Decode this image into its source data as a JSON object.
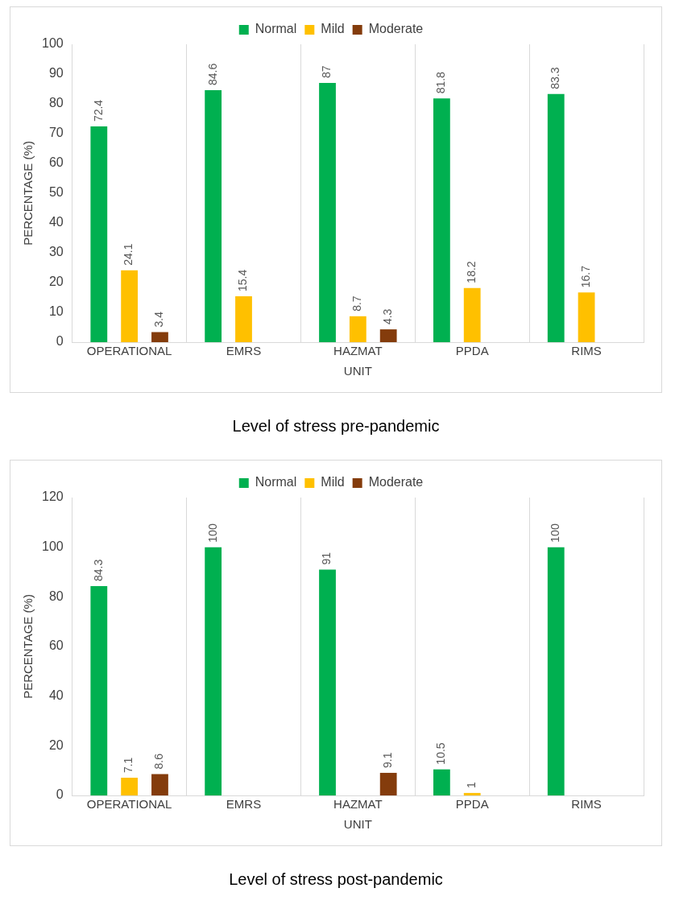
{
  "chart_data": [
    {
      "type": "bar",
      "title": "Level of stress pre-pandemic",
      "xlabel": "UNIT",
      "ylabel": "PERCENTAGE (%)",
      "categories": [
        "OPERATIONAL",
        "EMRS",
        "HAZMAT",
        "PPDA",
        "RIMS"
      ],
      "series": [
        {
          "name": "Normal",
          "color": "#00b050",
          "values": [
            72.4,
            84.6,
            87,
            81.8,
            83.3
          ]
        },
        {
          "name": "Mild",
          "color": "#ffc000",
          "values": [
            24.1,
            15.4,
            8.7,
            18.2,
            16.7
          ]
        },
        {
          "name": "Moderate",
          "color": "#843c0c",
          "values": [
            3.4,
            null,
            4.3,
            null,
            null
          ]
        }
      ],
      "ylim": [
        0,
        100
      ],
      "yticks": [
        0,
        10,
        20,
        30,
        40,
        50,
        60,
        70,
        80,
        90,
        100
      ],
      "grid": "x",
      "legend": "top",
      "data_labels": true
    },
    {
      "type": "bar",
      "title": "Level of stress post-pandemic",
      "xlabel": "UNIT",
      "ylabel": "PERCENTAGE (%)",
      "categories": [
        "OPERATIONAL",
        "EMRS",
        "HAZMAT",
        "PPDA",
        "RIMS"
      ],
      "series": [
        {
          "name": "Normal",
          "color": "#00b050",
          "values": [
            84.3,
            100,
            91,
            10.5,
            100
          ]
        },
        {
          "name": "Mild",
          "color": "#ffc000",
          "values": [
            7.1,
            null,
            null,
            1,
            null
          ]
        },
        {
          "name": "Moderate",
          "color": "#843c0c",
          "values": [
            8.6,
            null,
            9.1,
            null,
            null
          ]
        }
      ],
      "ylim": [
        0,
        120
      ],
      "yticks": [
        0,
        20,
        40,
        60,
        80,
        100,
        120
      ],
      "grid": "x",
      "legend": "top",
      "data_labels": true
    }
  ]
}
